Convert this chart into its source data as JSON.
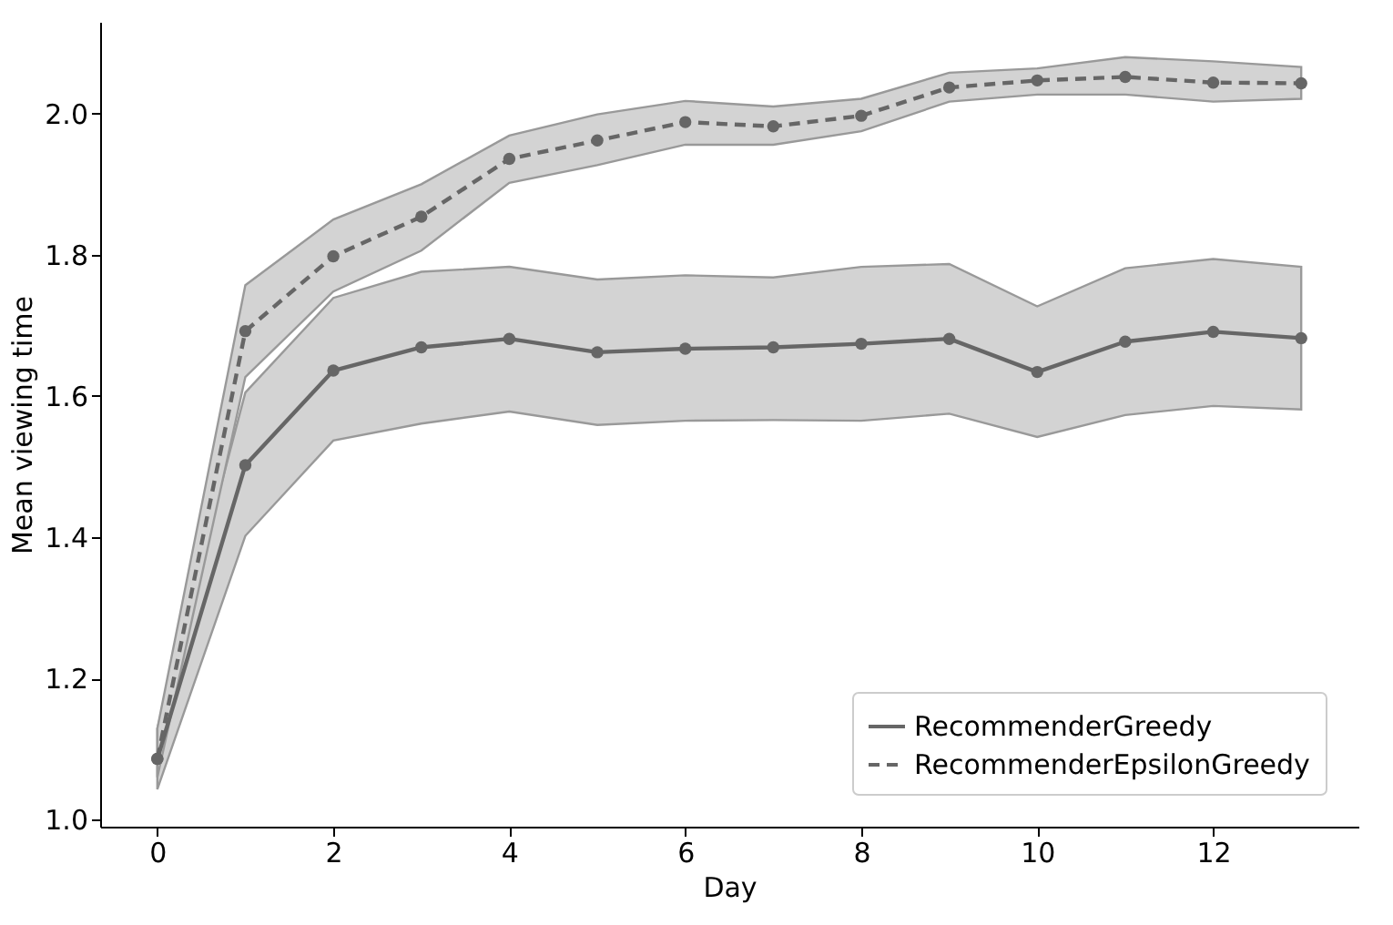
{
  "chart_data": {
    "type": "line",
    "xlabel": "Day",
    "ylabel": "Mean viewing time",
    "x": [
      0,
      1,
      2,
      3,
      4,
      5,
      6,
      7,
      8,
      9,
      10,
      11,
      12,
      13
    ],
    "xlim": [
      -0.65,
      13.65
    ],
    "xticks": [
      0,
      2,
      4,
      6,
      8,
      10,
      12
    ],
    "ylim": [
      0.99,
      2.13
    ],
    "yticks": [
      {
        "value": 1.0,
        "label": "1.0"
      },
      {
        "value": 1.2,
        "label": "1.2"
      },
      {
        "value": 1.4,
        "label": "1.4"
      },
      {
        "value": 1.6,
        "label": "1.6"
      },
      {
        "value": 1.8,
        "label": "1.8"
      },
      {
        "value": 2.0,
        "label": "2.0"
      }
    ],
    "grid": false,
    "legend": "bottom right",
    "marker": "circle",
    "series": [
      {
        "name": "RecommenderGreedy",
        "color": "#666666",
        "line_style": "solid",
        "values": [
          1.086,
          1.502,
          1.636,
          1.669,
          1.681,
          1.662,
          1.667,
          1.669,
          1.674,
          1.681,
          1.634,
          1.677,
          1.691,
          1.682
        ],
        "lower": [
          1.043,
          1.402,
          1.537,
          1.561,
          1.578,
          1.559,
          1.565,
          1.566,
          1.565,
          1.575,
          1.542,
          1.573,
          1.586,
          1.581
        ],
        "upper": [
          1.129,
          1.605,
          1.739,
          1.776,
          1.783,
          1.765,
          1.771,
          1.768,
          1.783,
          1.787,
          1.727,
          1.781,
          1.794,
          1.783
        ]
      },
      {
        "name": "RecommenderEpsilonGreedy",
        "color": "#666666",
        "line_style": "dashed",
        "values": [
          1.086,
          1.692,
          1.798,
          1.854,
          1.936,
          1.962,
          1.988,
          1.982,
          1.997,
          2.037,
          2.047,
          2.052,
          2.044,
          2.043
        ],
        "lower": [
          1.06,
          1.627,
          1.748,
          1.806,
          1.902,
          1.927,
          1.956,
          1.956,
          1.975,
          2.017,
          2.027,
          2.027,
          2.017,
          2.021
        ],
        "upper": [
          1.129,
          1.757,
          1.85,
          1.9,
          1.969,
          1.999,
          2.018,
          2.01,
          2.021,
          2.058,
          2.064,
          2.08,
          2.074,
          2.066
        ]
      }
    ]
  }
}
